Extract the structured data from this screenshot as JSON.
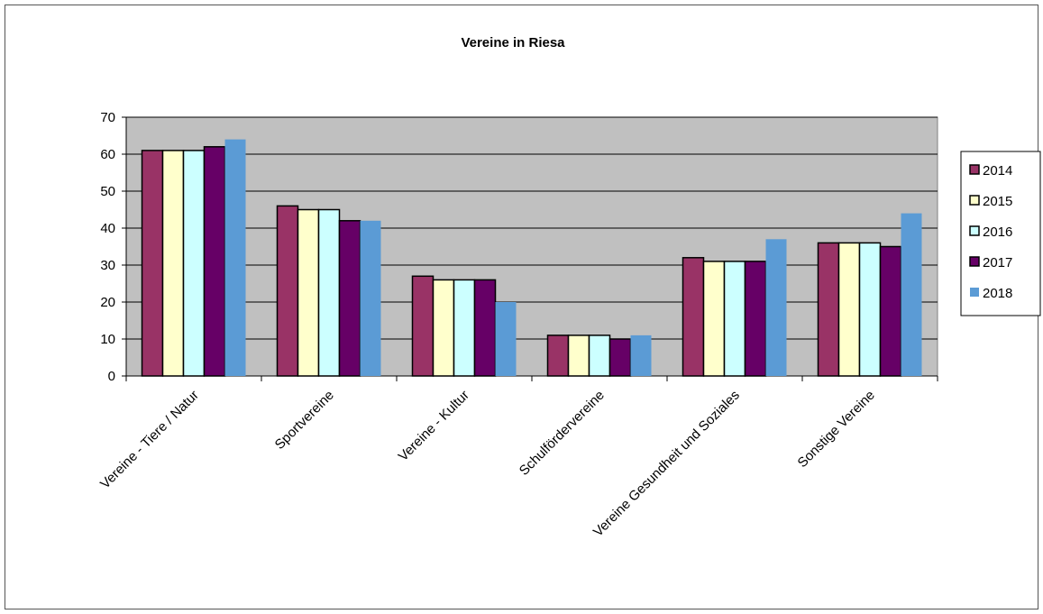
{
  "chart_data": {
    "type": "bar",
    "title": "Vereine in Riesa",
    "xlabel": "",
    "ylabel": "",
    "ylim": [
      0,
      70
    ],
    "yticks": [
      0,
      10,
      20,
      30,
      40,
      50,
      60,
      70
    ],
    "grid": true,
    "legend_position": "right",
    "categories": [
      "Vereine - Tiere / Natur",
      "Sportvereine",
      "Vereine - Kultur",
      "Schulfördervereine",
      "Vereine Gesundheit und Soziales",
      "Sonstige Vereine"
    ],
    "series": [
      {
        "name": "2014",
        "color": "#993366",
        "outlined": true,
        "values": [
          61,
          46,
          27,
          11,
          32,
          36
        ]
      },
      {
        "name": "2015",
        "color": "#FFFFCC",
        "outlined": true,
        "values": [
          61,
          45,
          26,
          11,
          31,
          36
        ]
      },
      {
        "name": "2016",
        "color": "#CCFFFF",
        "outlined": true,
        "values": [
          61,
          45,
          26,
          11,
          31,
          36
        ]
      },
      {
        "name": "2017",
        "color": "#660066",
        "outlined": true,
        "values": [
          62,
          42,
          26,
          10,
          31,
          35
        ]
      },
      {
        "name": "2018",
        "color": "#5B9BD5",
        "outlined": false,
        "values": [
          64,
          42,
          20,
          11,
          37,
          44
        ]
      }
    ],
    "plot_background": "#C0C0C0"
  }
}
